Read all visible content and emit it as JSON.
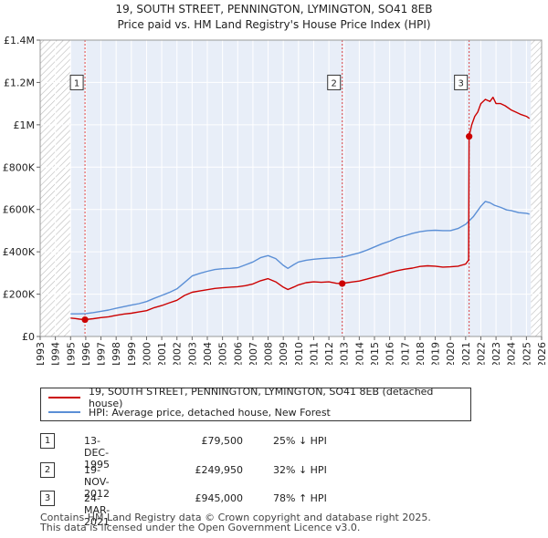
{
  "chart_data": {
    "type": "line",
    "title": "19, SOUTH STREET, PENNINGTON, LYMINGTON, SO41 8EB",
    "subtitle": "Price paid vs. HM Land Registry's House Price Index (HPI)",
    "xlim": [
      1993,
      2026
    ],
    "ylim": [
      0,
      1400000
    ],
    "yticks": [
      0,
      200000,
      400000,
      600000,
      800000,
      1000000,
      1200000,
      1400000
    ],
    "ytick_labels": [
      "£0",
      "£200K",
      "£400K",
      "£600K",
      "£800K",
      "£1M",
      "£1.2M",
      "£1.4M"
    ],
    "xticks": [
      1993,
      1994,
      1995,
      1996,
      1997,
      1998,
      1999,
      2000,
      2001,
      2002,
      2003,
      2004,
      2005,
      2006,
      2007,
      2008,
      2009,
      2010,
      2011,
      2012,
      2013,
      2014,
      2015,
      2016,
      2017,
      2018,
      2019,
      2020,
      2021,
      2022,
      2023,
      2024,
      2025,
      2026
    ],
    "data_range": [
      1995.0,
      2025.3
    ],
    "series": [
      {
        "name": "19, SOUTH STREET, PENNINGTON, LYMINGTON, SO41 8EB (detached house)",
        "color": "#cc0000",
        "x": [
          1995.0,
          1995.3,
          1995.6,
          1995.95,
          1996.5,
          1997.0,
          1997.5,
          1998.0,
          1998.5,
          1999.0,
          1999.5,
          2000.0,
          2000.5,
          2001.0,
          2001.5,
          2002.0,
          2002.5,
          2003.0,
          2003.5,
          2004.0,
          2004.5,
          2005.0,
          2005.5,
          2006.0,
          2006.5,
          2007.0,
          2007.5,
          2008.0,
          2008.5,
          2009.0,
          2009.3,
          2009.7,
          2010.0,
          2010.5,
          2011.0,
          2011.5,
          2012.0,
          2012.5,
          2012.88,
          2013.0,
          2013.5,
          2014.0,
          2014.5,
          2015.0,
          2015.5,
          2016.0,
          2016.5,
          2017.0,
          2017.5,
          2018.0,
          2018.5,
          2019.0,
          2019.5,
          2020.0,
          2020.5,
          2021.0,
          2021.2,
          2021.23,
          2021.4,
          2021.6,
          2021.8,
          2022.0,
          2022.3,
          2022.6,
          2022.8,
          2023.0,
          2023.3,
          2023.6,
          2024.0,
          2024.3,
          2024.6,
          2025.0,
          2025.2
        ],
        "y": [
          87000,
          85000,
          82000,
          79500,
          84000,
          89000,
          93000,
          100000,
          106000,
          110000,
          116000,
          122000,
          136000,
          146000,
          159000,
          171000,
          194000,
          209000,
          215000,
          221000,
          227000,
          230000,
          233000,
          235000,
          240000,
          248000,
          263000,
          273000,
          258000,
          233000,
          222000,
          234000,
          244000,
          254000,
          258000,
          256000,
          258000,
          251000,
          249950,
          252000,
          257000,
          262000,
          271000,
          281000,
          290000,
          302000,
          311000,
          318000,
          323000,
          331000,
          334000,
          332000,
          328000,
          329000,
          332000,
          342000,
          361000,
          945000,
          1000000,
          1040000,
          1060000,
          1100000,
          1120000,
          1110000,
          1130000,
          1100000,
          1100000,
          1090000,
          1070000,
          1060000,
          1050000,
          1040000,
          1030000
        ]
      },
      {
        "name": "HPI: Average price, detached house, New Forest",
        "color": "#5b8fd6",
        "x": [
          1995.0,
          1995.5,
          1996.0,
          1996.5,
          1997.0,
          1997.5,
          1998.0,
          1998.5,
          1999.0,
          1999.5,
          2000.0,
          2000.5,
          2001.0,
          2001.5,
          2002.0,
          2002.5,
          2003.0,
          2003.5,
          2004.0,
          2004.5,
          2005.0,
          2005.5,
          2006.0,
          2006.5,
          2007.0,
          2007.5,
          2008.0,
          2008.5,
          2009.0,
          2009.3,
          2009.7,
          2010.0,
          2010.5,
          2011.0,
          2011.5,
          2012.0,
          2012.5,
          2013.0,
          2013.5,
          2014.0,
          2014.5,
          2015.0,
          2015.5,
          2016.0,
          2016.5,
          2017.0,
          2017.5,
          2018.0,
          2018.5,
          2019.0,
          2019.5,
          2020.0,
          2020.5,
          2021.0,
          2021.5,
          2022.0,
          2022.3,
          2022.6,
          2022.9,
          2023.3,
          2023.7,
          2024.0,
          2024.5,
          2025.0,
          2025.2
        ],
        "y": [
          107000,
          107000,
          108000,
          113000,
          119000,
          125000,
          133000,
          141000,
          148000,
          155000,
          165000,
          180000,
          194000,
          208000,
          225000,
          255000,
          286000,
          298000,
          308000,
          316000,
          320000,
          322000,
          325000,
          338000,
          352000,
          372000,
          382000,
          368000,
          336000,
          322000,
          340000,
          352000,
          360000,
          365000,
          368000,
          370000,
          372000,
          376000,
          386000,
          395000,
          408000,
          423000,
          438000,
          450000,
          466000,
          476000,
          487000,
          495000,
          500000,
          502000,
          500000,
          500000,
          510000,
          530000,
          565000,
          615000,
          638000,
          632000,
          620000,
          610000,
          598000,
          595000,
          585000,
          582000,
          578000
        ]
      }
    ],
    "transactions": [
      {
        "label": "1",
        "x": 1995.95,
        "y": 79500
      },
      {
        "label": "2",
        "x": 2012.88,
        "y": 249950
      },
      {
        "label": "3",
        "x": 2021.23,
        "y": 945000
      }
    ],
    "marker_box_value": 1200000,
    "hatch_color": "#bbbbbb",
    "grid_color": "#ffffff",
    "background_color": "#e8eef8"
  },
  "title_line1": "19, SOUTH STREET, PENNINGTON, LYMINGTON, SO41 8EB",
  "title_line2": "Price paid vs. HM Land Registry's House Price Index (HPI)",
  "legend": {
    "property_label": "19, SOUTH STREET, PENNINGTON, LYMINGTON, SO41 8EB (detached house)",
    "hpi_label": "HPI: Average price, detached house, New Forest"
  },
  "table": [
    {
      "num": "1",
      "date": "13-DEC-1995",
      "price": "£79,500",
      "hpi": "25% ↓ HPI"
    },
    {
      "num": "2",
      "date": "19-NOV-2012",
      "price": "£249,950",
      "hpi": "32% ↓ HPI"
    },
    {
      "num": "3",
      "date": "24-MAR-2021",
      "price": "£945,000",
      "hpi": "78% ↑ HPI"
    }
  ],
  "footer_line1": "Contains HM Land Registry data © Crown copyright and database right 2025.",
  "footer_line2": "This data is licensed under the Open Government Licence v3.0."
}
